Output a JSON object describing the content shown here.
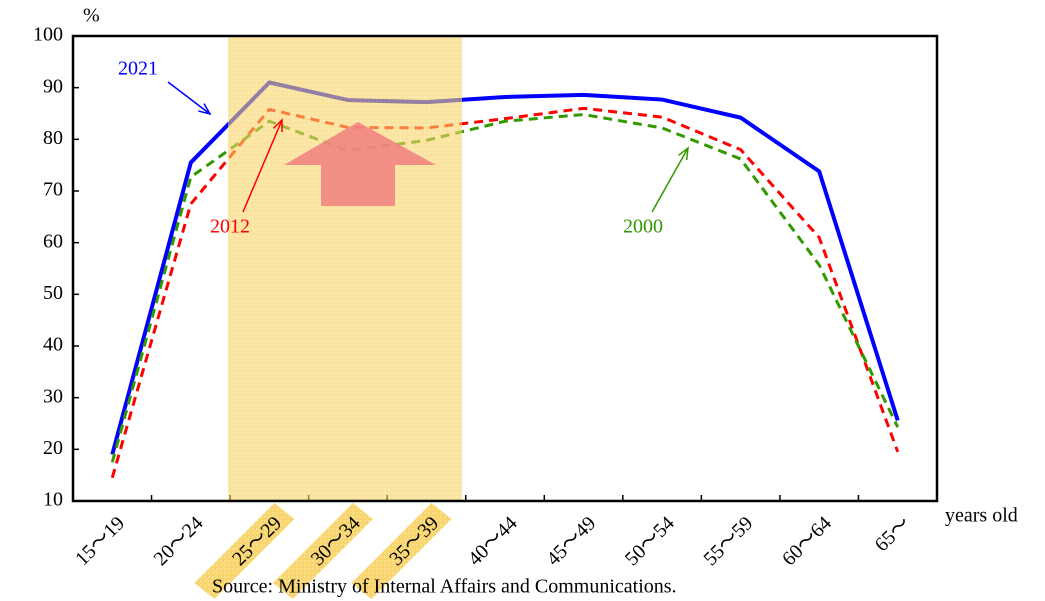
{
  "chart_data": {
    "type": "line",
    "y_unit": "%",
    "x_label": "years old",
    "source": "Source: Ministry of Internal Affairs and Communications.",
    "categories": [
      "15～19",
      "20～24",
      "25～29",
      "30～34",
      "35～39",
      "40～44",
      "45～49",
      "50～54",
      "55～59",
      "60～64",
      "65～"
    ],
    "series": [
      {
        "name": "2021",
        "color": "#0000ff",
        "linestyle": "solid",
        "values": [
          19.0,
          75.5,
          91.0,
          87.6,
          87.2,
          88.2,
          88.6,
          87.7,
          84.2,
          73.8,
          25.6
        ]
      },
      {
        "name": "2012",
        "color": "#ff0000",
        "linestyle": "dashed",
        "values": [
          14.5,
          67.5,
          85.8,
          82.3,
          82.2,
          84.0,
          86.0,
          84.3,
          78.0,
          61.0,
          19.5
        ]
      },
      {
        "name": "2000",
        "color": "#339900",
        "linestyle": "dashed",
        "values": [
          17.5,
          72.7,
          83.5,
          77.8,
          79.8,
          83.5,
          84.8,
          82.2,
          76.2,
          55.7,
          24.3
        ]
      }
    ],
    "ylim": [
      10,
      100
    ],
    "yticks": [
      10,
      20,
      30,
      40,
      50,
      60,
      70,
      80,
      90,
      100
    ],
    "grid": false
  }
}
